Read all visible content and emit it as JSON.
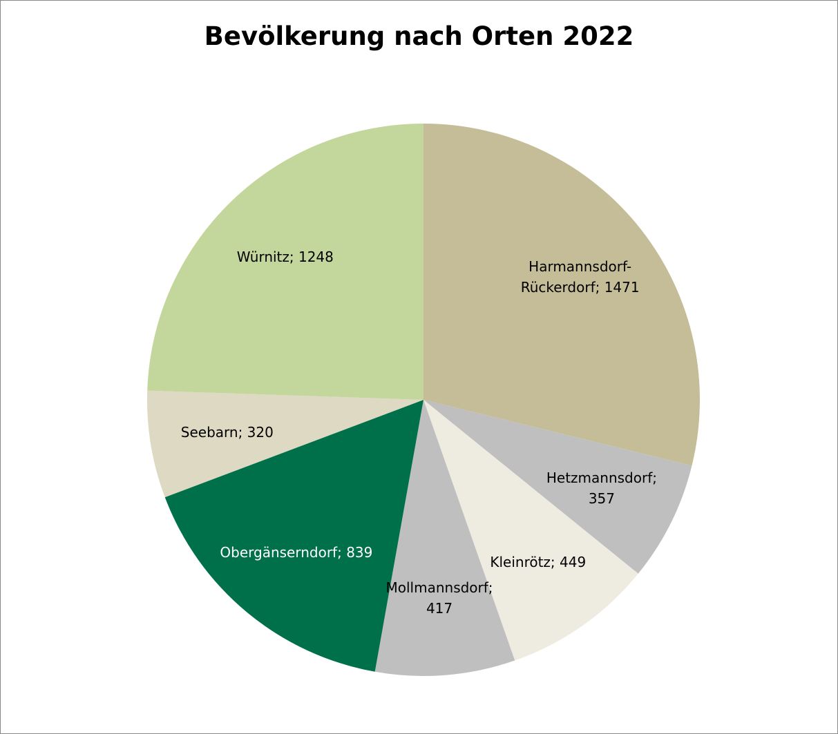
{
  "chart_data": {
    "type": "pie",
    "title": "Bevölkerung nach Orten 2022",
    "values": [
      1471,
      357,
      449,
      417,
      839,
      320,
      1248
    ],
    "value_labels": [
      "Harmannsdorf-Rückerdorf; 1471",
      "Hetzmannsdorf; 357",
      "Kleinrötz; 449",
      "Mollmanns­dorf; 417",
      "Obergänserndorf; 839",
      "Seebarn; 320",
      "Würnitz; 1248"
    ],
    "colors": [
      "#c4bd97",
      "#bfbfbf",
      "#eeece1",
      "#bfbfbf",
      "#00704a",
      "#ddd9c3",
      "#c3d69b"
    ]
  }
}
